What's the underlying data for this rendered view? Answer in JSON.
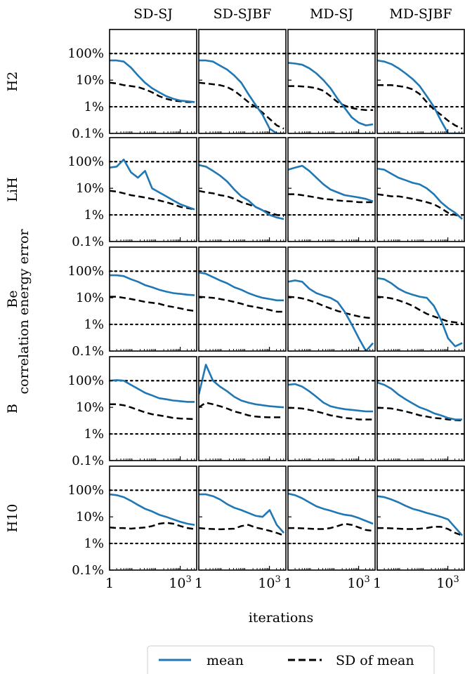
{
  "chart_data": {
    "type": "line",
    "ylabel": "correlation energy error",
    "xlabel": "iterations",
    "x_scale": "log",
    "y_scale": "log",
    "xlim": [
      1,
      5000
    ],
    "ylim": [
      0.1,
      800
    ],
    "x_ticks": [
      {
        "value": 1,
        "label": "1"
      },
      {
        "value": 1000,
        "label": "10",
        "sup": "3"
      }
    ],
    "y_ticks": [
      {
        "value": 0.1,
        "label": "0.1%"
      },
      {
        "value": 1,
        "label": "1%"
      },
      {
        "value": 10,
        "label": "10%"
      },
      {
        "value": 100,
        "label": "100%"
      }
    ],
    "reference_lines": [
      1,
      100
    ],
    "columns": [
      "SD-SJ",
      "SD-SJBF",
      "MD-SJ",
      "MD-SJBF"
    ],
    "rows": [
      "H2",
      "LiH",
      "Be",
      "B",
      "H10"
    ],
    "legend": {
      "position": "bottom-center",
      "entries": [
        {
          "name": "mean",
          "color": "#1f77b4",
          "style": "solid"
        },
        {
          "name": "SD of mean",
          "color": "#000000",
          "style": "dashed"
        }
      ]
    },
    "series_x": [
      1,
      2,
      4,
      8,
      16,
      32,
      64,
      128,
      256,
      512,
      1024,
      2048,
      4096
    ],
    "panels": [
      {
        "row": "H2",
        "column": "SD-SJ",
        "mean": [
          55,
          55,
          50,
          30,
          15,
          8,
          5,
          3.5,
          2.5,
          2,
          1.7,
          1.6,
          1.5
        ],
        "sd": [
          8,
          7.5,
          6.5,
          6,
          5.5,
          4.5,
          3.5,
          2.5,
          2,
          1.7,
          1.6,
          1.5,
          1.5
        ]
      },
      {
        "row": "H2",
        "column": "SD-SJBF",
        "mean": [
          55,
          55,
          50,
          35,
          25,
          15,
          8,
          3,
          1.2,
          0.5,
          0.15,
          0.1,
          0.1
        ],
        "sd": [
          8,
          7.5,
          7,
          6.5,
          5.5,
          4,
          2.5,
          1.5,
          1,
          0.6,
          0.35,
          0.2,
          0.15
        ]
      },
      {
        "row": "H2",
        "column": "MD-SJ",
        "mean": [
          45,
          42,
          38,
          28,
          18,
          10,
          5,
          2,
          0.9,
          0.4,
          0.25,
          0.2,
          0.22
        ],
        "sd": [
          6,
          6,
          5.8,
          5.5,
          5,
          4,
          2.5,
          1.5,
          1.1,
          0.9,
          0.8,
          0.75,
          0.75
        ]
      },
      {
        "row": "H2",
        "column": "MD-SJBF",
        "mean": [
          55,
          50,
          40,
          28,
          18,
          11,
          6,
          2.5,
          1,
          0.3,
          0.1,
          0.1,
          0.1
        ],
        "sd": [
          6.5,
          6.5,
          6.5,
          6,
          5.5,
          4.5,
          3,
          1.5,
          0.8,
          0.5,
          0.3,
          0.2,
          0.15
        ]
      },
      {
        "row": "LiH",
        "column": "SD-SJ",
        "mean": [
          60,
          65,
          120,
          40,
          25,
          45,
          10,
          7,
          5,
          3.5,
          2.5,
          2,
          1.6
        ],
        "sd": [
          8,
          7.5,
          6.5,
          5.5,
          5,
          4.5,
          4,
          3.5,
          3,
          2.5,
          2,
          1.8,
          1.6
        ]
      },
      {
        "row": "LiH",
        "column": "SD-SJBF",
        "mean": [
          75,
          65,
          45,
          30,
          18,
          9,
          5,
          3.5,
          2,
          1.5,
          1,
          0.8,
          0.7
        ],
        "sd": [
          8,
          7,
          6.5,
          5.5,
          5,
          4,
          3,
          2.5,
          2,
          1.5,
          1.2,
          1,
          0.9
        ]
      },
      {
        "row": "LiH",
        "column": "MD-SJ",
        "mean": [
          50,
          60,
          70,
          45,
          25,
          14,
          9,
          7,
          5.5,
          5,
          4.5,
          4,
          3.2
        ],
        "sd": [
          6,
          6,
          5.5,
          5,
          4.5,
          4,
          3.8,
          3.5,
          3.3,
          3.2,
          3,
          3,
          3
        ]
      },
      {
        "row": "LiH",
        "column": "MD-SJBF",
        "mean": [
          55,
          50,
          35,
          25,
          20,
          16,
          14,
          10,
          6,
          3,
          1.8,
          1.2,
          0.7
        ],
        "sd": [
          6,
          5.5,
          5,
          5,
          4.5,
          4,
          3.5,
          3,
          2.5,
          1.8,
          1.2,
          1,
          0.9
        ]
      },
      {
        "row": "Be",
        "column": "SD-SJ",
        "mean": [
          70,
          70,
          65,
          50,
          40,
          30,
          25,
          20,
          17,
          15,
          14,
          13,
          12.5
        ],
        "sd": [
          11,
          11,
          10,
          9,
          8,
          7,
          6.5,
          6,
          5,
          4.5,
          4,
          3.5,
          3.2
        ]
      },
      {
        "row": "Be",
        "column": "SD-SJBF",
        "mean": [
          90,
          80,
          60,
          45,
          35,
          25,
          20,
          15,
          12,
          10,
          9,
          8,
          8
        ],
        "sd": [
          11,
          10.5,
          10,
          9,
          8,
          7,
          6,
          5,
          4.5,
          4,
          3.5,
          3,
          3
        ]
      },
      {
        "row": "Be",
        "column": "MD-SJ",
        "mean": [
          40,
          45,
          40,
          22,
          15,
          12,
          10,
          7,
          3,
          1,
          0.3,
          0.1,
          0.2
        ],
        "sd": [
          11,
          10.5,
          9.5,
          8,
          6.5,
          5,
          4,
          3.2,
          2.7,
          2.3,
          2,
          1.8,
          1.7
        ]
      },
      {
        "row": "Be",
        "column": "MD-SJBF",
        "mean": [
          55,
          50,
          35,
          22,
          16,
          13,
          11,
          10,
          5,
          1.5,
          0.3,
          0.15,
          0.2
        ],
        "sd": [
          11,
          10.5,
          9.5,
          8,
          6.5,
          5,
          3.5,
          2.5,
          2,
          1.6,
          1.3,
          1.2,
          1.1
        ]
      },
      {
        "row": "B",
        "column": "SD-SJ",
        "mean": [
          100,
          105,
          100,
          70,
          50,
          35,
          28,
          22,
          20,
          18,
          17,
          16,
          16
        ],
        "sd": [
          13,
          13,
          12,
          10,
          8,
          6.5,
          5.5,
          5,
          4.5,
          4,
          3.8,
          3.7,
          3.6
        ]
      },
      {
        "row": "B",
        "column": "SD-SJBF",
        "mean": [
          30,
          400,
          100,
          60,
          40,
          25,
          18,
          15,
          13,
          12,
          11,
          10.5,
          10
        ],
        "sd": [
          10,
          15,
          13,
          11,
          9,
          7,
          6,
          5,
          4.5,
          4.3,
          4.2,
          4.2,
          4.2
        ]
      },
      {
        "row": "B",
        "column": "MD-SJ",
        "mean": [
          70,
          75,
          60,
          40,
          25,
          15,
          11,
          9.5,
          8.5,
          8,
          7.5,
          7,
          7
        ],
        "sd": [
          9.5,
          9.5,
          9,
          8,
          7,
          6,
          5,
          4.5,
          4,
          3.8,
          3.5,
          3.5,
          3.5
        ]
      },
      {
        "row": "B",
        "column": "MD-SJBF",
        "mean": [
          85,
          70,
          50,
          30,
          20,
          14,
          10,
          8,
          6,
          5,
          4,
          3.5,
          3.5
        ],
        "sd": [
          9.5,
          9.5,
          9,
          8,
          7,
          6,
          5,
          4.5,
          4,
          3.8,
          3.5,
          3.3,
          3.2
        ]
      },
      {
        "row": "H10",
        "column": "SD-SJ",
        "mean": [
          70,
          65,
          55,
          40,
          28,
          20,
          16,
          12,
          10,
          8,
          6.5,
          5.5,
          5
        ],
        "sd": [
          4,
          3.8,
          3.8,
          3.6,
          3.8,
          4,
          4.5,
          5.5,
          6,
          5.5,
          4.5,
          3.8,
          3.5
        ]
      },
      {
        "row": "H10",
        "column": "SD-SJBF",
        "mean": [
          70,
          70,
          60,
          45,
          30,
          22,
          18,
          14,
          11,
          10,
          18,
          5,
          2.5
        ],
        "sd": [
          3.8,
          3.6,
          3.5,
          3.4,
          3.5,
          3.6,
          4.5,
          5,
          4,
          3.5,
          3,
          2.5,
          2
        ]
      },
      {
        "row": "H10",
        "column": "MD-SJ",
        "mean": [
          75,
          65,
          50,
          35,
          25,
          20,
          17,
          14,
          12,
          11,
          9,
          7,
          5.5
        ],
        "sd": [
          3.8,
          3.8,
          3.7,
          3.6,
          3.5,
          3.5,
          3.8,
          4.5,
          5.5,
          5,
          4,
          3.2,
          3
        ]
      },
      {
        "row": "H10",
        "column": "MD-SJBF",
        "mean": [
          60,
          55,
          45,
          35,
          26,
          20,
          17,
          14,
          12,
          10,
          8,
          4,
          2
        ],
        "sd": [
          3.8,
          3.8,
          3.7,
          3.6,
          3.5,
          3.5,
          3.6,
          3.8,
          4.3,
          4.2,
          3.5,
          2.5,
          2
        ]
      }
    ]
  }
}
